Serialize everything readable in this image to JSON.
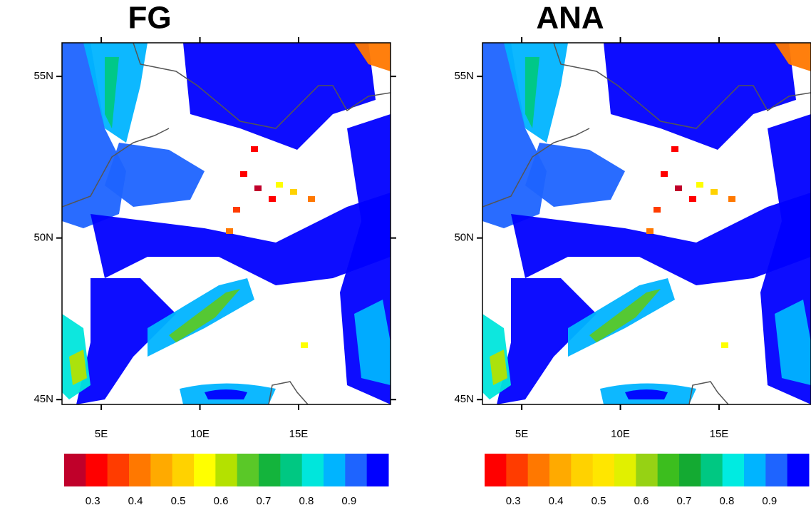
{
  "panels": [
    {
      "title": "FG",
      "latlim": [
        44.85,
        56.04
      ],
      "lonlim": [
        3.01,
        19.66
      ],
      "lat_ticks": [
        {
          "value": 45,
          "label": "45N"
        },
        {
          "value": 50,
          "label": "50N"
        },
        {
          "value": 55,
          "label": "55N"
        }
      ],
      "lon_ticks": [
        {
          "value": 5,
          "label": "5E"
        },
        {
          "value": 10,
          "label": "10E"
        },
        {
          "value": 15,
          "label": "15E"
        }
      ],
      "colorbar": {
        "lim": [
          0.233,
          0.992
        ],
        "ticks": [
          0.3,
          0.4,
          0.5,
          0.6,
          0.7,
          0.8,
          0.9
        ],
        "colors": [
          "#c0002a",
          "#ff0000",
          "#ff3c00",
          "#ff7800",
          "#ffaa00",
          "#ffd200",
          "#ffff00",
          "#b4e100",
          "#5ac828",
          "#14b43c",
          "#00c882",
          "#00e6dc",
          "#00b4ff",
          "#1e64ff",
          "#0000ff"
        ]
      }
    },
    {
      "title": "ANA",
      "latlim": [
        44.85,
        56.04
      ],
      "lonlim": [
        3.01,
        19.66
      ],
      "lat_ticks": [
        {
          "value": 45,
          "label": "45N"
        },
        {
          "value": 50,
          "label": "50N"
        },
        {
          "value": 55,
          "label": "55N"
        }
      ],
      "lon_ticks": [
        {
          "value": 5,
          "label": "5E"
        },
        {
          "value": 10,
          "label": "10E"
        },
        {
          "value": 15,
          "label": "15E"
        }
      ],
      "colorbar": {
        "lim": [
          0.233,
          0.992
        ],
        "ticks": [
          0.3,
          0.4,
          0.5,
          0.6,
          0.7,
          0.8,
          0.9
        ],
        "colors": [
          "#ff0000",
          "#ff3c00",
          "#ff7800",
          "#ffaa00",
          "#ffd200",
          "#ffe600",
          "#e1f000",
          "#96d214",
          "#3cbe1e",
          "#14aa32",
          "#00c882",
          "#00ebe1",
          "#00b4ff",
          "#1e64ff",
          "#0000ff"
        ]
      }
    }
  ]
}
